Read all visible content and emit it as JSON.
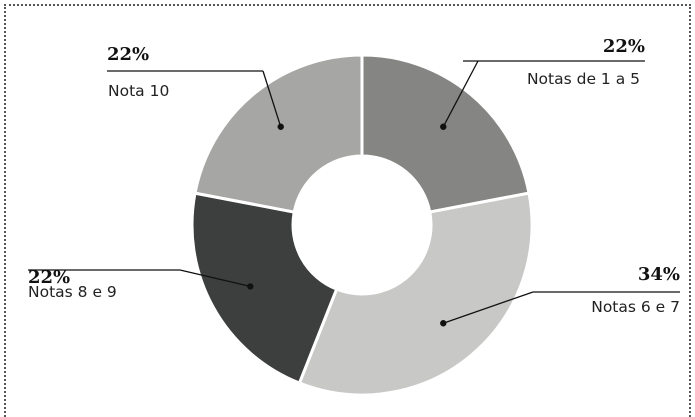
{
  "chart_data": {
    "type": "pie",
    "donut": true,
    "title": "",
    "unit": "%",
    "categories": [
      "Notas de 1 a 5",
      "Notas 6 e 7",
      "Notas 8 e 9",
      "Nota 10"
    ],
    "values": [
      22,
      34,
      22,
      22
    ],
    "value_labels": [
      "22%",
      "34%",
      "22%",
      "22%"
    ],
    "colors": [
      "#858683",
      "#c8c9c7",
      "#3d3f3e",
      "#a6a7a5"
    ],
    "start_angle_deg": 0,
    "direction": "clockwise",
    "legend": "none"
  }
}
